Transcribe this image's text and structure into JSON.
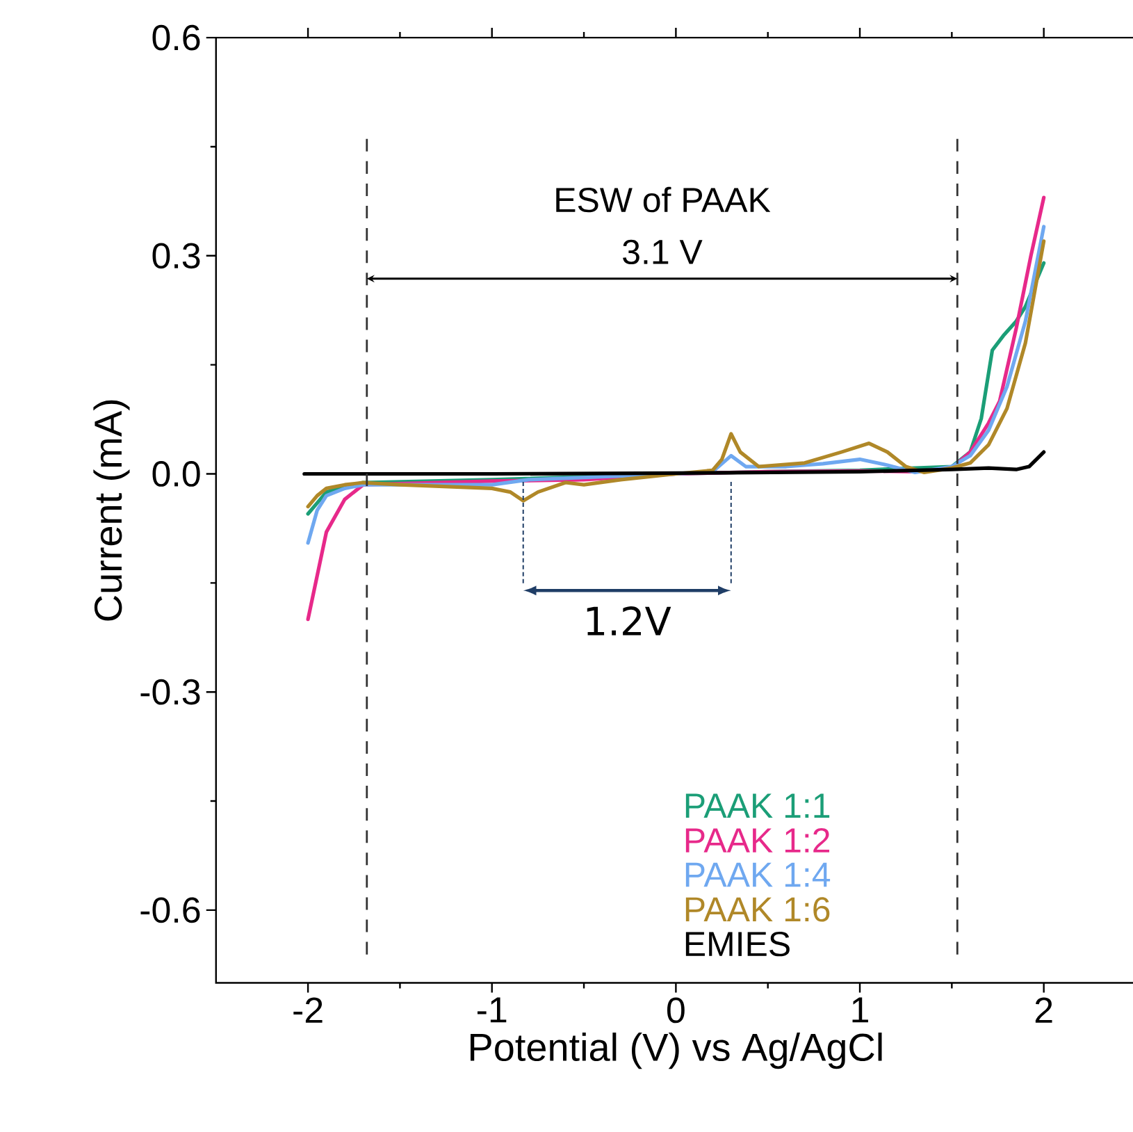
{
  "chart_data": {
    "type": "line",
    "xlabel": "Potential (V) vs Ag/AgCl",
    "ylabel": "Current (mA)",
    "xlim": [
      -2.5,
      2.5
    ],
    "ylim": [
      -0.7,
      0.6
    ],
    "xticks": [
      -2,
      -1,
      0,
      1,
      2
    ],
    "yticks": [
      -0.6,
      -0.3,
      {
        "value": 0,
        "label": "0.0"
      },
      0.3,
      0.6
    ],
    "grid": false,
    "legend": "bottom",
    "marker": "none",
    "line_style": "solid",
    "series": [
      {
        "name": "PAAK 1:1",
        "color": "#1b9e77",
        "x": [
          -2,
          -1.95,
          -1.9,
          -1.8,
          -1.7,
          -1.0,
          0,
          0.5,
          1.0,
          1.5,
          1.6,
          1.66,
          1.72,
          1.78,
          1.85,
          1.9,
          1.95,
          2.0
        ],
        "values": [
          -0.055,
          -0.04,
          -0.025,
          -0.018,
          -0.012,
          -0.008,
          0,
          0.003,
          0.005,
          0.01,
          0.03,
          0.076,
          0.17,
          0.19,
          0.21,
          0.23,
          0.26,
          0.29
        ]
      },
      {
        "name": "PAAK 1:2",
        "color": "#e7298a",
        "x": [
          -2,
          -1.95,
          -1.9,
          -1.8,
          -1.7,
          -1.0,
          -0.5,
          0,
          0.5,
          1.0,
          1.3,
          1.5,
          1.6,
          1.7,
          1.76,
          1.85,
          1.93,
          2.0
        ],
        "values": [
          -0.2,
          -0.14,
          -0.08,
          -0.035,
          -0.015,
          -0.01,
          -0.008,
          0,
          0.003,
          0.004,
          0.003,
          0.008,
          0.03,
          0.07,
          0.1,
          0.2,
          0.3,
          0.38
        ]
      },
      {
        "name": "PAAK 1:4",
        "color": "#6fa8f0",
        "x": [
          -2,
          -1.95,
          -1.9,
          -1.8,
          -1.7,
          -1.0,
          -0.8,
          -0.5,
          0,
          0.2,
          0.3,
          0.38,
          0.6,
          0.8,
          1.0,
          1.15,
          1.3,
          1.5,
          1.6,
          1.7,
          1.8,
          1.9,
          2.0
        ],
        "values": [
          -0.095,
          -0.05,
          -0.03,
          -0.02,
          -0.015,
          -0.015,
          -0.008,
          -0.005,
          0,
          0.003,
          0.025,
          0.01,
          0.01,
          0.014,
          0.02,
          0.012,
          0.002,
          0.01,
          0.025,
          0.06,
          0.12,
          0.21,
          0.34
        ]
      },
      {
        "name": "PAAK 1:6",
        "color": "#b08828",
        "x": [
          -2,
          -1.95,
          -1.9,
          -1.8,
          -1.7,
          -1.5,
          -1.0,
          -0.9,
          -0.83,
          -0.75,
          -0.6,
          -0.5,
          -0.3,
          0,
          0.2,
          0.25,
          0.3,
          0.35,
          0.45,
          0.7,
          0.9,
          1.05,
          1.15,
          1.25,
          1.35,
          1.5,
          1.6,
          1.7,
          1.8,
          1.9,
          2.0
        ],
        "values": [
          -0.045,
          -0.03,
          -0.02,
          -0.015,
          -0.012,
          -0.015,
          -0.02,
          -0.025,
          -0.037,
          -0.025,
          -0.012,
          -0.015,
          -0.008,
          0,
          0.005,
          0.02,
          0.055,
          0.03,
          0.01,
          0.015,
          0.03,
          0.042,
          0.03,
          0.01,
          0.002,
          0.008,
          0.015,
          0.04,
          0.09,
          0.18,
          0.32
        ]
      },
      {
        "name": "EMIES",
        "color": "#000000",
        "x": [
          -2.02,
          -1.0,
          0,
          1.0,
          1.5,
          1.7,
          1.85,
          1.92,
          2.0
        ],
        "values": [
          0,
          0,
          0.001,
          0.003,
          0.006,
          0.008,
          0.006,
          0.01,
          0.03
        ]
      }
    ],
    "ref_lines": [
      {
        "axis": "x",
        "value": -1.68,
        "color": "#333333",
        "line_style": "dashed"
      },
      {
        "axis": "x",
        "value": 1.53,
        "color": "#333333",
        "line_style": "dashed"
      }
    ],
    "annotations": [
      "ESW of PAAK",
      "3.1 V",
      "1.2V"
    ]
  }
}
